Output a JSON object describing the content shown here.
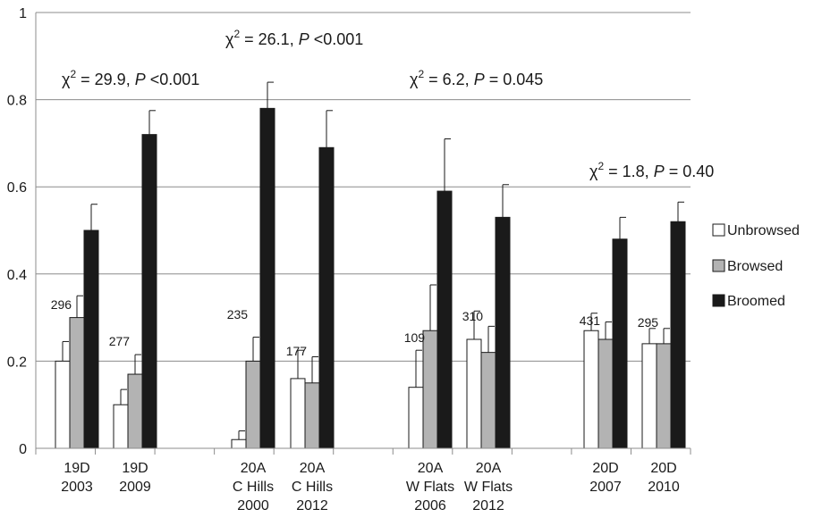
{
  "chart_data": {
    "type": "bar",
    "ylim": [
      0,
      1
    ],
    "yticks": [
      "0",
      "0.2",
      "0.4",
      "0.6",
      "0.8",
      "1"
    ],
    "grid": true,
    "legend_position": "right",
    "categories": [
      [
        "19D",
        "2003"
      ],
      [
        "19D",
        "2009"
      ],
      [
        "20A",
        "C Hills",
        "2000"
      ],
      [
        "20A",
        "C Hills",
        "2012"
      ],
      [
        "20A",
        "W Flats",
        "2006"
      ],
      [
        "20A",
        "W Flats",
        "2012"
      ],
      [
        "20D",
        "2007"
      ],
      [
        "20D",
        "2010"
      ]
    ],
    "sample_sizes": [
      "296",
      "277",
      "235",
      "177",
      "109",
      "310",
      "431",
      "295"
    ],
    "series": [
      {
        "name": "Unbrowsed",
        "color": "#ffffff",
        "values": [
          0.2,
          0.1,
          0.02,
          0.16,
          0.14,
          0.25,
          0.27,
          0.24
        ],
        "error": [
          0.045,
          0.035,
          0.02,
          0.065,
          0.085,
          0.065,
          0.04,
          0.035
        ]
      },
      {
        "name": "Browsed",
        "color": "#b3b3b3",
        "values": [
          0.3,
          0.17,
          0.2,
          0.15,
          0.27,
          0.22,
          0.25,
          0.24
        ],
        "error": [
          0.05,
          0.045,
          0.055,
          0.06,
          0.105,
          0.06,
          0.04,
          0.035
        ]
      },
      {
        "name": "Broomed",
        "color": "#1a1a1a",
        "values": [
          0.5,
          0.72,
          0.78,
          0.69,
          0.59,
          0.53,
          0.48,
          0.52
        ],
        "error": [
          0.06,
          0.055,
          0.06,
          0.085,
          0.12,
          0.075,
          0.05,
          0.045
        ]
      }
    ],
    "annotations": [
      {
        "chi": "χ",
        "sup": "2",
        "mid": " = 29.9, ",
        "p": "P",
        "rest": " <0.001"
      },
      {
        "chi": "χ",
        "sup": "2",
        "mid": " = 26.1, ",
        "p": "P",
        "rest": " <0.001"
      },
      {
        "chi": "χ",
        "sup": "2",
        "mid": " = 6.2, ",
        "p": "P",
        "rest": " = 0.045"
      },
      {
        "chi": "χ",
        "sup": "2",
        "mid": " = 1.8, ",
        "p": "P",
        "rest": " = 0.40"
      }
    ]
  }
}
